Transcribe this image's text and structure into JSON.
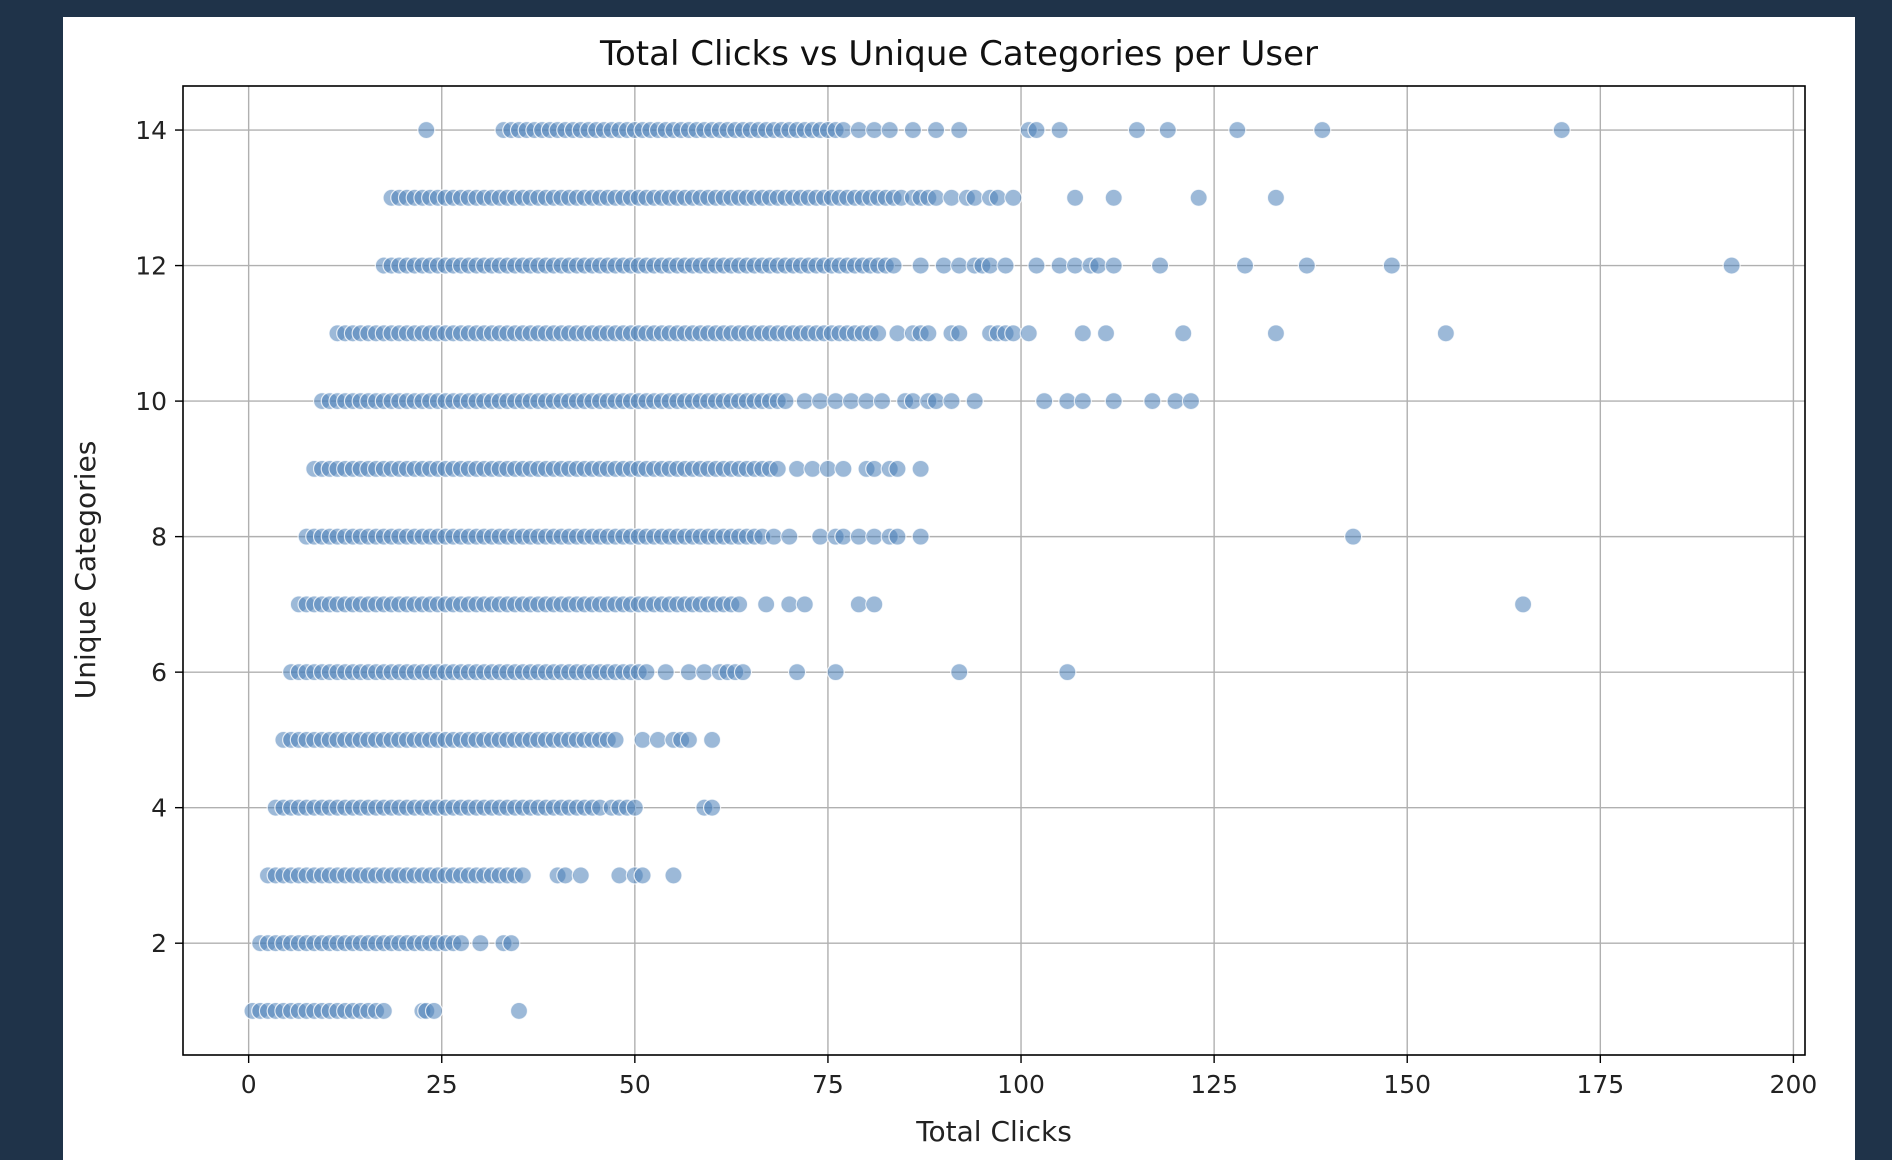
{
  "colors": {
    "background": "#1f3349",
    "panel": "#ffffff",
    "point": "#4a7fb8",
    "grid": "#b0b0b0"
  },
  "chart_data": {
    "type": "scatter",
    "title": "Total Clicks vs Unique Categories per User",
    "xlabel": "Total Clicks",
    "ylabel": "Unique Categories",
    "xlim": [
      -8.5,
      201.5
    ],
    "ylim": [
      0.35,
      14.65
    ],
    "xticks": [
      0,
      25,
      50,
      75,
      100,
      125,
      150,
      175,
      200
    ],
    "yticks": [
      2,
      4,
      6,
      8,
      10,
      12,
      14
    ],
    "grid": true,
    "legend": "none",
    "marker_color": "#4a7fb8",
    "marker_alpha": 0.55,
    "rows": [
      {
        "y": 1,
        "dense_from": 0.5,
        "dense_to": 18,
        "extra": [
          22.5,
          23,
          24,
          35
        ]
      },
      {
        "y": 2,
        "dense_from": 1.5,
        "dense_to": 28,
        "extra": [
          30,
          33,
          34
        ]
      },
      {
        "y": 3,
        "dense_from": 2.5,
        "dense_to": 36,
        "extra": [
          40,
          41,
          43,
          48,
          50,
          51,
          55
        ]
      },
      {
        "y": 4,
        "dense_from": 3.5,
        "dense_to": 46,
        "extra": [
          47,
          48,
          49,
          50,
          59,
          60
        ]
      },
      {
        "y": 5,
        "dense_from": 4.5,
        "dense_to": 48,
        "extra": [
          51,
          53,
          55,
          56,
          57,
          60
        ]
      },
      {
        "y": 6,
        "dense_from": 5.5,
        "dense_to": 52,
        "extra": [
          54,
          57,
          59,
          61,
          62,
          63,
          64,
          71,
          76,
          92,
          106
        ]
      },
      {
        "y": 7,
        "dense_from": 6.5,
        "dense_to": 64,
        "extra": [
          67,
          70,
          72,
          79,
          81,
          165
        ]
      },
      {
        "y": 8,
        "dense_from": 7.5,
        "dense_to": 67,
        "extra": [
          68,
          70,
          74,
          76,
          77,
          79,
          81,
          83,
          84,
          87,
          143
        ]
      },
      {
        "y": 9,
        "dense_from": 8.5,
        "dense_to": 69,
        "extra": [
          71,
          73,
          75,
          77,
          80,
          81,
          83,
          84,
          87
        ]
      },
      {
        "y": 10,
        "dense_from": 9.5,
        "dense_to": 70,
        "extra": [
          72,
          74,
          76,
          78,
          80,
          82,
          85,
          86,
          88,
          89,
          91,
          94,
          103,
          106,
          108,
          112,
          117,
          120,
          122
        ]
      },
      {
        "y": 11,
        "dense_from": 11.5,
        "dense_to": 82,
        "extra": [
          84,
          86,
          87,
          88,
          91,
          92,
          96,
          97,
          98,
          99,
          101,
          108,
          111,
          121,
          133,
          155
        ]
      },
      {
        "y": 12,
        "dense_from": 17.5,
        "dense_to": 84,
        "extra": [
          87,
          90,
          92,
          94,
          95,
          96,
          98,
          102,
          105,
          107,
          109,
          110,
          112,
          118,
          129,
          137,
          148,
          192
        ]
      },
      {
        "y": 13,
        "dense_from": 18.5,
        "dense_to": 85,
        "extra": [
          86,
          87,
          88,
          89,
          91,
          93,
          94,
          96,
          97,
          99,
          107,
          112,
          123,
          133
        ]
      },
      {
        "y": 14,
        "dense_from": 33,
        "dense_to": 77,
        "extra": [
          23,
          79,
          81,
          83,
          86,
          89,
          92,
          101,
          102,
          105,
          115,
          119,
          128,
          139,
          170
        ]
      }
    ]
  }
}
